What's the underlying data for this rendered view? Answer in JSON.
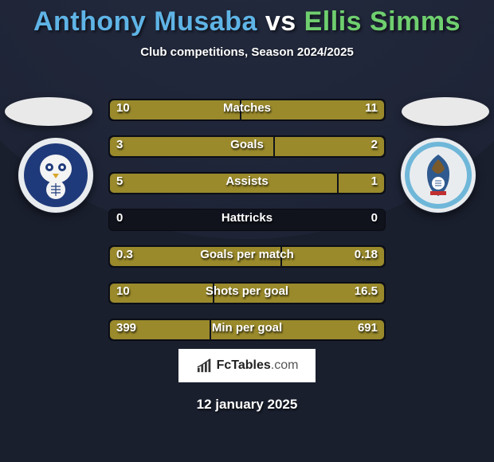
{
  "title": {
    "player1": "Anthony Musaba",
    "vs": "vs",
    "player2": "Ellis Simms",
    "player1_color": "#5fb4e6",
    "vs_color": "#ffffff",
    "player2_color": "#6fcf6f"
  },
  "subtitle": "Club competitions, Season 2024/2025",
  "crest_left": {
    "outer_bg": "#e9ecef",
    "inner_bg": "#1f3a7a"
  },
  "crest_right": {
    "outer_bg": "#e9ecef",
    "inner_bg": "#6fb7d9"
  },
  "bar_style": {
    "track_bg": "#10131c",
    "fill_color": "#9a8a2b",
    "inner_width": 344,
    "label_color": "#ffffff",
    "label_fontsize": 15
  },
  "stats": [
    {
      "label": "Matches",
      "left_val": "10",
      "right_val": "11",
      "left_w": 163,
      "right_w": 179
    },
    {
      "label": "Goals",
      "left_val": "3",
      "right_val": "2",
      "left_w": 205,
      "right_w": 137
    },
    {
      "label": "Assists",
      "left_val": "5",
      "right_val": "1",
      "left_w": 285,
      "right_w": 57
    },
    {
      "label": "Hattricks",
      "left_val": "0",
      "right_val": "0",
      "left_w": 0,
      "right_w": 0
    },
    {
      "label": "Goals per match",
      "left_val": "0.3",
      "right_val": "0.18",
      "left_w": 214,
      "right_w": 128
    },
    {
      "label": "Shots per goal",
      "left_val": "10",
      "right_val": "16.5",
      "left_w": 129,
      "right_w": 213
    },
    {
      "label": "Min per goal",
      "left_val": "399",
      "right_val": "691",
      "left_w": 125,
      "right_w": 217
    }
  ],
  "branding": {
    "name": "FcTables",
    "domain": ".com"
  },
  "date": "12 january 2025"
}
